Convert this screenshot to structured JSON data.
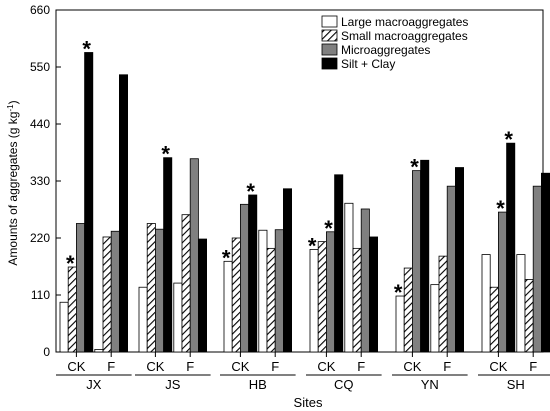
{
  "chart_data": {
    "type": "bar",
    "xlabel": "Sites",
    "ylabel": "Amounts of aggregates (g kg",
    "ylabel_sup": "-1",
    "ylabel_tail": ")",
    "ylim": [
      0,
      660
    ],
    "yticks": [
      "0",
      "110",
      "220",
      "330",
      "440",
      "550",
      "660"
    ],
    "treatment_labels": [
      "CK",
      "F"
    ],
    "sites": [
      "JX",
      "JS",
      "HB",
      "CQ",
      "YN",
      "SH"
    ],
    "series": [
      {
        "name": "Large macroaggregates",
        "fill": "#ffffff"
      },
      {
        "name": "Small macroaggregates",
        "fill": "hatch"
      },
      {
        "name": "Microaggregates",
        "fill": "#808080"
      },
      {
        "name": "Silt + Clay",
        "fill": "#000000"
      }
    ],
    "values": {
      "JX": {
        "CK": [
          96,
          164,
          248,
          578
        ],
        "F": [
          5,
          222,
          233,
          535
        ]
      },
      "JS": {
        "CK": [
          125,
          248,
          237,
          375
        ],
        "F": [
          133,
          265,
          373,
          218
        ]
      },
      "HB": {
        "CK": [
          175,
          220,
          285,
          303
        ],
        "F": [
          235,
          200,
          236,
          315
        ]
      },
      "CQ": {
        "CK": [
          198,
          213,
          232,
          342
        ],
        "F": [
          287,
          200,
          276,
          222
        ]
      },
      "YN": {
        "CK": [
          108,
          162,
          350,
          370
        ],
        "F": [
          130,
          185,
          320,
          356
        ]
      },
      "SH": {
        "CK": [
          188,
          125,
          270,
          403
        ],
        "F": [
          188,
          140,
          320,
          345
        ]
      }
    },
    "significance_marks": [
      {
        "site": "JX",
        "treatment": "CK",
        "series": "Small macroaggregates",
        "mark": "*"
      },
      {
        "site": "JX",
        "treatment": "CK",
        "series": "Silt + Clay",
        "mark": "*"
      },
      {
        "site": "JS",
        "treatment": "CK",
        "series": "Silt + Clay",
        "mark": "*"
      },
      {
        "site": "HB",
        "treatment": "CK",
        "series": "Large macroaggregates",
        "mark": "*"
      },
      {
        "site": "HB",
        "treatment": "CK",
        "series": "Silt + Clay",
        "mark": "*"
      },
      {
        "site": "CQ",
        "treatment": "CK",
        "series": "Large macroaggregates",
        "mark": "*"
      },
      {
        "site": "CQ",
        "treatment": "CK",
        "series": "Microaggregates",
        "mark": "*"
      },
      {
        "site": "YN",
        "treatment": "CK",
        "series": "Large macroaggregates",
        "mark": "*"
      },
      {
        "site": "YN",
        "treatment": "CK",
        "series": "Microaggregates",
        "mark": "*"
      },
      {
        "site": "SH",
        "treatment": "CK",
        "series": "Microaggregates",
        "mark": "*"
      },
      {
        "site": "SH",
        "treatment": "CK",
        "series": "Silt + Clay",
        "mark": "*"
      }
    ],
    "legend_position": "top-right",
    "grid": false
  }
}
